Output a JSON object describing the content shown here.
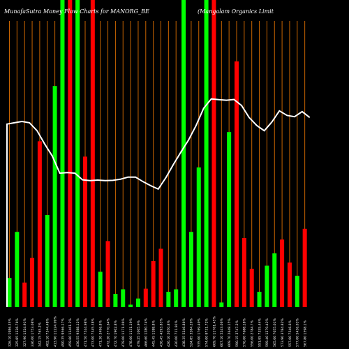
{
  "chart_data": {
    "type": "bar",
    "title_left": "MunafaSutra  Money Flow Charts for MANORG_BE",
    "title_right": "(Mangalam Organics Limit",
    "colors": {
      "background": "#000000",
      "gridline": "#c86400",
      "up_bar": "#00ff00",
      "down_bar": "#ff0000",
      "price_line": "#ffffff"
    },
    "bar_ylim": [
      0,
      100
    ],
    "price_ylim": [
      0,
      100
    ],
    "bars": [
      {
        "label": "326.10 1986.35%",
        "value": 9.5,
        "color": "green"
      },
      {
        "label": "325.85 1326.76%",
        "value": 24.5,
        "color": "green"
      },
      {
        "label": "327.90 1324.91%",
        "value": 8,
        "color": "red"
      },
      {
        "label": "336.00 1753.08%",
        "value": 16,
        "color": "red"
      },
      {
        "label": "342.15 765.2%",
        "value": 54,
        "color": "red"
      },
      {
        "label": "402.10 7344.48%",
        "value": 30,
        "color": "green"
      },
      {
        "label": "413.90 11224.09%",
        "value": 72,
        "color": "green"
      },
      {
        "label": "490.35 9566.17%",
        "value": 100,
        "color": "green"
      },
      {
        "label": "459.60 13461.2%",
        "value": 100,
        "color": "red"
      },
      {
        "label": "436.55 9388.12%",
        "value": 100,
        "color": "green"
      },
      {
        "label": "471.50 7544.98%",
        "value": 49,
        "color": "red"
      },
      {
        "label": "473.00 7345.38%",
        "value": 100,
        "color": "red"
      },
      {
        "label": "471.30 3496.8%",
        "value": 11.5,
        "color": "green"
      },
      {
        "label": "472.20 2770.64%",
        "value": 21.5,
        "color": "red"
      },
      {
        "label": "472.70 1902.8%",
        "value": 4.3,
        "color": "green"
      },
      {
        "label": "479.00 1171.06%",
        "value": 5.8,
        "color": "green"
      },
      {
        "label": "478.00 1131.19%",
        "value": 0.8,
        "color": "green"
      },
      {
        "label": "479.25 1005.9%",
        "value": 2.8,
        "color": "green"
      },
      {
        "label": "466.60 1280.74%",
        "value": 6,
        "color": "red"
      },
      {
        "label": "445.45 1188.8%",
        "value": 15,
        "color": "red"
      },
      {
        "label": "436.45 4293.83%",
        "value": 19,
        "color": "red"
      },
      {
        "label": "426.10 2050.8%",
        "value": 5,
        "color": "green"
      },
      {
        "label": "430.00 711.91%",
        "value": 5.8,
        "color": "green"
      },
      {
        "label": "438.35 5246.86%",
        "value": 100,
        "color": "green"
      },
      {
        "label": "524.85 3284.29%",
        "value": 24.5,
        "color": "green"
      },
      {
        "label": "535.00 1769.49%",
        "value": 45.5,
        "color": "green"
      },
      {
        "label": "574.00 9731.72%",
        "value": 100,
        "color": "green"
      },
      {
        "label": "609.70 11761.45%",
        "value": 100,
        "color": "red"
      },
      {
        "label": "607.10 5243.06%",
        "value": 1.5,
        "color": "green"
      },
      {
        "label": "609.70 2648.15%",
        "value": 57,
        "color": "green"
      },
      {
        "label": "590.15 3747.2%",
        "value": 80,
        "color": "red"
      },
      {
        "label": "576.00 7688.18%",
        "value": 22.5,
        "color": "red"
      },
      {
        "label": "556.00 2784.7%",
        "value": 12.5,
        "color": "red"
      },
      {
        "label": "551.95 7355.44%",
        "value": 5,
        "color": "green"
      },
      {
        "label": "599.40 1279.43%",
        "value": 13.5,
        "color": "green"
      },
      {
        "label": "565.00 7055.01%",
        "value": 17.5,
        "color": "green"
      },
      {
        "label": "573.90 3784.82%",
        "value": 22,
        "color": "red"
      },
      {
        "label": "557.00 7546.6%",
        "value": 14.5,
        "color": "red"
      },
      {
        "label": "577.00 5436.03%",
        "value": 10.2,
        "color": "green"
      },
      {
        "label": "567.80 1598.1%",
        "value": 25.5,
        "color": "red"
      }
    ],
    "price_line": [
      69,
      69.5,
      70,
      69.5,
      66.5,
      61.5,
      57,
      50.5,
      50.7,
      50.5,
      48,
      47.7,
      47.9,
      47.7,
      47.8,
      48.2,
      49,
      49,
      47.3,
      45.8,
      44.5,
      48.8,
      53.8,
      58.5,
      63,
      68.5,
      75,
      78.5,
      78.2,
      78,
      78.3,
      76,
      71.5,
      68.5,
      66.5,
      69.8,
      74,
      72.3,
      71.8,
      73.7,
      71.5
    ]
  }
}
